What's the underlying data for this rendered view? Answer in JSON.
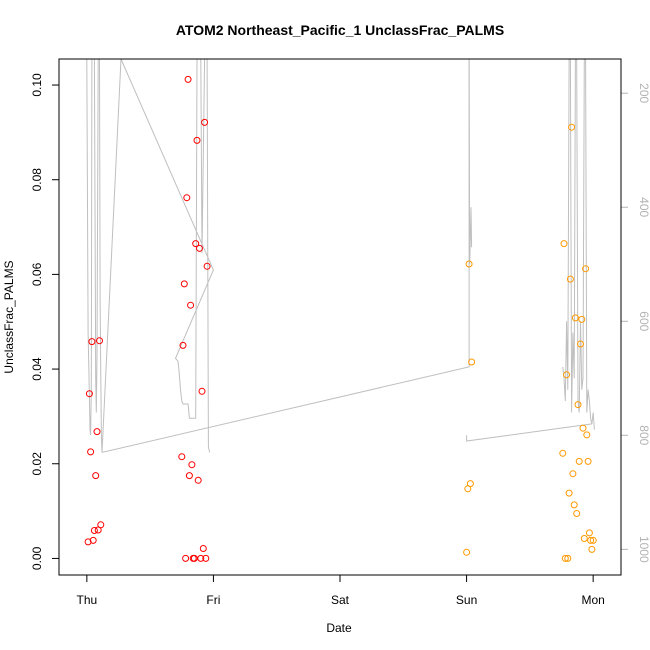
{
  "chart_data": {
    "type": "scatter",
    "title": "ATOM2 Northeast_Pacific_1 UnclassFrac_PALMS",
    "xlabel": "Date",
    "ylabel": "UnclassFrac_PALMS",
    "x_ticks": [
      "Thu",
      "Fri",
      "Sat",
      "Sun",
      "Mon"
    ],
    "x_tick_days": [
      0,
      1,
      2,
      3,
      4
    ],
    "xlim_days": [
      -0.22,
      4.22
    ],
    "ylim": [
      -0.0035,
      0.1055
    ],
    "y_ticks": [
      0.0,
      0.02,
      0.04,
      0.06,
      0.08,
      0.1
    ],
    "y_tick_labels": [
      "0.00",
      "0.02",
      "0.04",
      "0.06",
      "0.08",
      "0.10"
    ],
    "right_axis": {
      "ticks": [
        200,
        400,
        600,
        800,
        1000
      ],
      "lim": [
        1045,
        140
      ],
      "color": "#b3b3b3"
    },
    "grid": false,
    "legend": "none",
    "series": [
      {
        "color": "#ff0000",
        "points": [
          [
            0.01,
            0.0035
          ],
          [
            0.02,
            0.0348
          ],
          [
            0.03,
            0.0225
          ],
          [
            0.04,
            0.0458
          ],
          [
            0.05,
            0.0038
          ],
          [
            0.06,
            0.0059
          ],
          [
            0.07,
            0.0175
          ],
          [
            0.08,
            0.0268
          ],
          [
            0.09,
            0.006
          ],
          [
            0.1,
            0.046
          ],
          [
            0.11,
            0.0071
          ],
          [
            0.75,
            0.0215
          ],
          [
            0.76,
            0.045
          ],
          [
            0.77,
            0.058
          ],
          [
            0.78,
            0.0
          ],
          [
            0.79,
            0.0762
          ],
          [
            0.8,
            0.1012
          ],
          [
            0.81,
            0.0175
          ],
          [
            0.82,
            0.0535
          ],
          [
            0.83,
            0.0198
          ],
          [
            0.84,
            0.0
          ],
          [
            0.85,
            0.0
          ],
          [
            0.86,
            0.0665
          ],
          [
            0.87,
            0.0883
          ],
          [
            0.88,
            0.0165
          ],
          [
            0.89,
            0.0655
          ],
          [
            0.9,
            0.0
          ],
          [
            0.91,
            0.0353
          ],
          [
            0.92,
            0.0021
          ],
          [
            0.93,
            0.0921
          ],
          [
            0.94,
            0.0
          ],
          [
            0.95,
            0.0617
          ]
        ]
      },
      {
        "color": "#ff9900",
        "points": [
          [
            3.0,
            0.0013
          ],
          [
            3.01,
            0.0147
          ],
          [
            3.02,
            0.0622
          ],
          [
            3.03,
            0.0158
          ],
          [
            3.04,
            0.0415
          ],
          [
            3.76,
            0.0222
          ],
          [
            3.77,
            0.0665
          ],
          [
            3.78,
            0.0
          ],
          [
            3.79,
            0.0388
          ],
          [
            3.8,
            0.0
          ],
          [
            3.81,
            0.0138
          ],
          [
            3.82,
            0.059
          ],
          [
            3.83,
            0.0911
          ],
          [
            3.84,
            0.0179
          ],
          [
            3.85,
            0.0113
          ],
          [
            3.86,
            0.0508
          ],
          [
            3.87,
            0.0095
          ],
          [
            3.88,
            0.0325
          ],
          [
            3.89,
            0.0205
          ],
          [
            3.9,
            0.0453
          ],
          [
            3.91,
            0.0505
          ],
          [
            3.92,
            0.0275
          ],
          [
            3.93,
            0.0042
          ],
          [
            3.94,
            0.0612
          ],
          [
            3.95,
            0.0261
          ],
          [
            3.96,
            0.0205
          ],
          [
            3.97,
            0.0054
          ],
          [
            3.98,
            0.0038
          ],
          [
            3.99,
            0.0019
          ],
          [
            4.0,
            0.0038
          ]
        ]
      }
    ],
    "altitude_trace": {
      "color": "#bfbfbf",
      "points": [
        [
          0.0,
          140
        ],
        [
          0.01,
          620
        ],
        [
          0.02,
          730
        ],
        [
          0.025,
          790
        ],
        [
          0.03,
          800
        ],
        [
          0.035,
          720
        ],
        [
          0.04,
          140
        ],
        [
          0.06,
          140
        ],
        [
          0.07,
          700
        ],
        [
          0.075,
          760
        ],
        [
          0.08,
          660
        ],
        [
          0.09,
          140
        ],
        [
          0.1,
          140
        ],
        [
          0.105,
          560
        ],
        [
          0.11,
          700
        ],
        [
          0.115,
          800
        ],
        [
          0.12,
          830
        ],
        [
          0.27,
          140
        ],
        [
          1.0,
          510
        ],
        [
          0.7,
          665
        ],
        [
          0.72,
          670
        ],
        [
          0.73,
          690
        ],
        [
          0.74,
          720
        ],
        [
          0.75,
          740
        ],
        [
          0.76,
          745
        ],
        [
          0.8,
          745
        ],
        [
          0.81,
          770
        ],
        [
          0.86,
          770
        ],
        [
          0.87,
          140
        ],
        [
          0.9,
          140
        ],
        [
          0.91,
          480
        ],
        [
          0.93,
          140
        ],
        [
          0.95,
          140
        ],
        [
          0.96,
          820
        ],
        [
          0.97,
          830
        ]
      ],
      "segments": [
        [
          [
            0.12,
            830
          ],
          [
            3.02,
            680
          ],
          [
            3.02,
            140
          ]
        ],
        [
          [
            3.02,
            140
          ],
          [
            3.025,
            500
          ],
          [
            3.03,
            450
          ],
          [
            3.035,
            400
          ],
          [
            3.04,
            470
          ]
        ],
        [
          [
            3.0,
            800
          ],
          [
            3.0,
            810
          ],
          [
            3.99,
            780
          ]
        ],
        [
          [
            3.76,
            680
          ],
          [
            3.77,
            700
          ],
          [
            3.78,
            740
          ],
          [
            3.79,
            600
          ],
          [
            3.8,
            720
          ],
          [
            3.81,
            140
          ],
          [
            3.82,
            140
          ],
          [
            3.83,
            760
          ],
          [
            3.84,
            620
          ],
          [
            3.85,
            700
          ],
          [
            3.86,
            140
          ],
          [
            3.87,
            140
          ],
          [
            3.88,
            740
          ],
          [
            3.89,
            760
          ],
          [
            3.9,
            600
          ],
          [
            3.91,
            720
          ],
          [
            3.92,
            700
          ],
          [
            3.93,
            140
          ],
          [
            3.94,
            140
          ],
          [
            3.95,
            760
          ],
          [
            3.96,
            720
          ],
          [
            3.97,
            740
          ],
          [
            3.98,
            770
          ],
          [
            3.99,
            780
          ],
          [
            4.0,
            760
          ],
          [
            4.01,
            790
          ]
        ]
      ]
    }
  }
}
